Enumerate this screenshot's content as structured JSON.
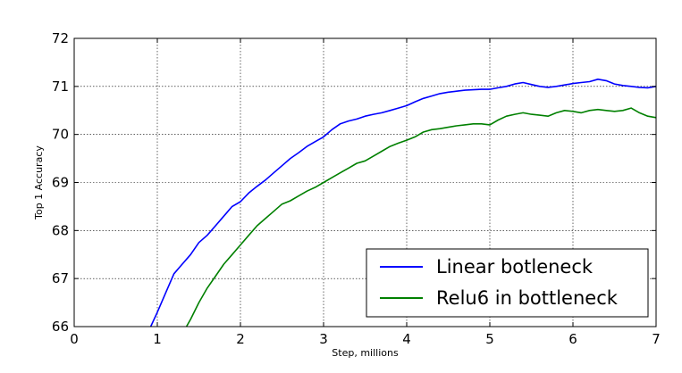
{
  "chart_data": {
    "type": "line",
    "title": "",
    "xlabel": "Step, millions",
    "ylabel": "Top 1 Accuracy",
    "xlim": [
      0,
      7
    ],
    "ylim": [
      66,
      72
    ],
    "xticks": [
      "0",
      "1",
      "2",
      "3",
      "4",
      "5",
      "6",
      "7"
    ],
    "yticks": [
      "66",
      "67",
      "68",
      "69",
      "70",
      "71",
      "72"
    ],
    "grid": true,
    "legend_position": "bottom-right",
    "series": [
      {
        "name": "Linear botleneck",
        "color": "#0000ff",
        "x": [
          0.92,
          1.0,
          1.1,
          1.2,
          1.3,
          1.4,
          1.5,
          1.6,
          1.7,
          1.8,
          1.9,
          2.0,
          2.1,
          2.2,
          2.3,
          2.4,
          2.5,
          2.6,
          2.7,
          2.8,
          2.9,
          3.0,
          3.1,
          3.2,
          3.3,
          3.4,
          3.5,
          3.6,
          3.7,
          3.8,
          3.9,
          4.0,
          4.1,
          4.2,
          4.3,
          4.4,
          4.5,
          4.6,
          4.7,
          4.8,
          4.9,
          5.0,
          5.1,
          5.2,
          5.3,
          5.4,
          5.5,
          5.6,
          5.7,
          5.8,
          5.9,
          6.0,
          6.1,
          6.2,
          6.3,
          6.4,
          6.5,
          6.6,
          6.7,
          6.8,
          6.9,
          7.0
        ],
        "values": [
          66.0,
          66.3,
          66.7,
          67.1,
          67.3,
          67.5,
          67.75,
          67.9,
          68.1,
          68.3,
          68.5,
          68.6,
          68.78,
          68.92,
          69.05,
          69.2,
          69.35,
          69.5,
          69.62,
          69.75,
          69.85,
          69.95,
          70.1,
          70.22,
          70.28,
          70.32,
          70.38,
          70.42,
          70.45,
          70.5,
          70.55,
          70.6,
          70.68,
          70.75,
          70.8,
          70.85,
          70.88,
          70.9,
          70.92,
          70.93,
          70.94,
          70.94,
          70.97,
          71.0,
          71.05,
          71.08,
          71.04,
          71.0,
          70.98,
          71.0,
          71.03,
          71.06,
          71.08,
          71.1,
          71.15,
          71.12,
          71.05,
          71.02,
          71.0,
          70.98,
          70.97,
          71.0
        ]
      },
      {
        "name": "Relu6 in bottleneck",
        "color": "#008000",
        "x": [
          1.35,
          1.4,
          1.5,
          1.6,
          1.7,
          1.8,
          1.9,
          2.0,
          2.1,
          2.2,
          2.3,
          2.4,
          2.5,
          2.6,
          2.7,
          2.8,
          2.9,
          3.0,
          3.1,
          3.2,
          3.3,
          3.4,
          3.5,
          3.6,
          3.7,
          3.8,
          3.9,
          4.0,
          4.1,
          4.2,
          4.3,
          4.4,
          4.5,
          4.6,
          4.7,
          4.8,
          4.9,
          5.0,
          5.1,
          5.2,
          5.3,
          5.4,
          5.5,
          5.6,
          5.7,
          5.8,
          5.9,
          6.0,
          6.1,
          6.2,
          6.3,
          6.4,
          6.5,
          6.6,
          6.7,
          6.8,
          6.9,
          7.0
        ],
        "values": [
          66.0,
          66.15,
          66.5,
          66.8,
          67.05,
          67.3,
          67.5,
          67.7,
          67.9,
          68.1,
          68.25,
          68.4,
          68.55,
          68.62,
          68.72,
          68.82,
          68.9,
          69.0,
          69.1,
          69.2,
          69.3,
          69.4,
          69.45,
          69.55,
          69.65,
          69.75,
          69.82,
          69.88,
          69.95,
          70.05,
          70.1,
          70.12,
          70.15,
          70.18,
          70.2,
          70.22,
          70.22,
          70.2,
          70.3,
          70.38,
          70.42,
          70.45,
          70.42,
          70.4,
          70.38,
          70.45,
          70.5,
          70.48,
          70.45,
          70.5,
          70.52,
          70.5,
          70.48,
          70.5,
          70.55,
          70.45,
          70.38,
          70.35
        ]
      }
    ]
  }
}
